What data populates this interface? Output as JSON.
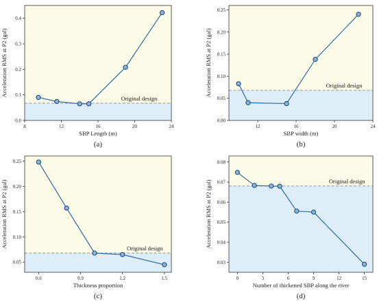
{
  "colors": {
    "line": "#2d6aa8",
    "marker_fill": "#8db3d6",
    "marker_stroke": "#1e4f80",
    "plot_bg": "#fbfbe7",
    "below_fill": "#ddeef9",
    "reference_line": "#8a8a8a"
  },
  "chart_data": [
    {
      "type": "line",
      "panel_label": "(a)",
      "xlabel": "SBP Length (m)",
      "ylabel": "Acceleration RMS at P2 (gal)",
      "xlim": [
        8,
        24
      ],
      "ylim": [
        0,
        0.45
      ],
      "xticks": [
        "8",
        "12",
        "16",
        "20",
        "24"
      ],
      "yticks": [
        "0.0",
        "0.1",
        "0.2",
        "0.3",
        "0.4"
      ],
      "grid": false,
      "reference": {
        "label": "Original design",
        "y": 0.067
      },
      "series": [
        {
          "x": [
            9.5,
            11.5,
            14,
            15,
            19,
            23
          ],
          "y": [
            0.09,
            0.074,
            0.065,
            0.065,
            0.208,
            0.422
          ]
        }
      ]
    },
    {
      "type": "line",
      "panel_label": "(b)",
      "xlabel": "SBP width (m)",
      "ylabel": "Acceleration RMS at P2 (gal)",
      "xlim": [
        9,
        24
      ],
      "ylim": [
        0,
        0.26
      ],
      "xticks": [
        "12",
        "16",
        "20",
        "24"
      ],
      "yticks": [
        "0.00",
        "0.05",
        "0.10",
        "0.15",
        "0.20",
        "0.25"
      ],
      "grid": false,
      "reference": {
        "label": "Original design",
        "y": 0.068
      },
      "series": [
        {
          "x": [
            10,
            11,
            15,
            18,
            22.5
          ],
          "y": [
            0.083,
            0.04,
            0.038,
            0.138,
            0.24
          ]
        }
      ]
    },
    {
      "type": "line",
      "panel_label": "(c)",
      "xlabel": "Thickness proportion",
      "ylabel": "Acceleration RMS at P2 (gal)",
      "xlim": [
        0.5,
        1.55
      ],
      "ylim": [
        0.03,
        0.26
      ],
      "xticks": [
        "0.6",
        "0.9",
        "1.2",
        "1.5"
      ],
      "yticks": [
        "0.05",
        "0.10",
        "0.15",
        "0.20",
        "0.25"
      ],
      "grid": false,
      "reference": {
        "label": "Original design",
        "y": 0.068
      },
      "series": [
        {
          "x": [
            0.6,
            0.8,
            1.0,
            1.2,
            1.5
          ],
          "y": [
            0.248,
            0.157,
            0.068,
            0.065,
            0.045
          ]
        }
      ]
    },
    {
      "type": "line",
      "panel_label": "(d)",
      "xlabel": "Number of thickened SBP along the river",
      "ylabel": "Acceleration RMS at P2 (gal)",
      "xlim": [
        -1,
        16
      ],
      "ylim": [
        0.025,
        0.083
      ],
      "xticks": [
        "0",
        "3",
        "6",
        "9",
        "12",
        "15"
      ],
      "yticks": [
        "0.03",
        "0.04",
        "0.05",
        "0.06",
        "0.07",
        "0.08"
      ],
      "grid": false,
      "reference": {
        "label": "Original design",
        "y": 0.068
      },
      "series": [
        {
          "x": [
            0,
            2,
            4,
            5,
            7,
            9,
            15
          ],
          "y": [
            0.0748,
            0.0683,
            0.068,
            0.0679,
            0.0555,
            0.055,
            0.029
          ]
        }
      ]
    }
  ]
}
